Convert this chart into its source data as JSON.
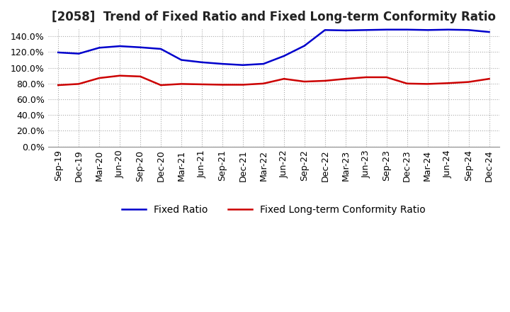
{
  "title": "[2058]  Trend of Fixed Ratio and Fixed Long-term Conformity Ratio",
  "x_labels": [
    "Sep-19",
    "Dec-19",
    "Mar-20",
    "Jun-20",
    "Sep-20",
    "Dec-20",
    "Mar-21",
    "Jun-21",
    "Sep-21",
    "Dec-21",
    "Mar-22",
    "Jun-22",
    "Sep-22",
    "Dec-22",
    "Mar-23",
    "Jun-23",
    "Sep-23",
    "Dec-23",
    "Mar-24",
    "Jun-24",
    "Sep-24",
    "Dec-24"
  ],
  "fixed_ratio": [
    119.5,
    118.0,
    125.5,
    127.5,
    126.0,
    124.0,
    110.0,
    107.0,
    105.0,
    103.5,
    105.0,
    115.0,
    128.0,
    148.0,
    147.5,
    148.0,
    148.5,
    148.5,
    148.0,
    148.5,
    148.0,
    145.5
  ],
  "fixed_lt_ratio": [
    78.0,
    79.5,
    87.0,
    90.0,
    89.0,
    78.0,
    79.5,
    79.0,
    78.5,
    78.5,
    80.0,
    86.0,
    82.5,
    83.5,
    86.0,
    88.0,
    88.0,
    80.0,
    79.5,
    80.5,
    82.0,
    86.0
  ],
  "fixed_ratio_color": "#0000cc",
  "fixed_lt_ratio_color": "#cc0000",
  "ylim": [
    0,
    150
  ],
  "yticks": [
    0,
    20,
    40,
    60,
    80,
    100,
    120,
    140
  ],
  "background_color": "#ffffff",
  "grid_color": "#aaaaaa",
  "title_fontsize": 12,
  "legend_fontsize": 10,
  "tick_fontsize": 9
}
